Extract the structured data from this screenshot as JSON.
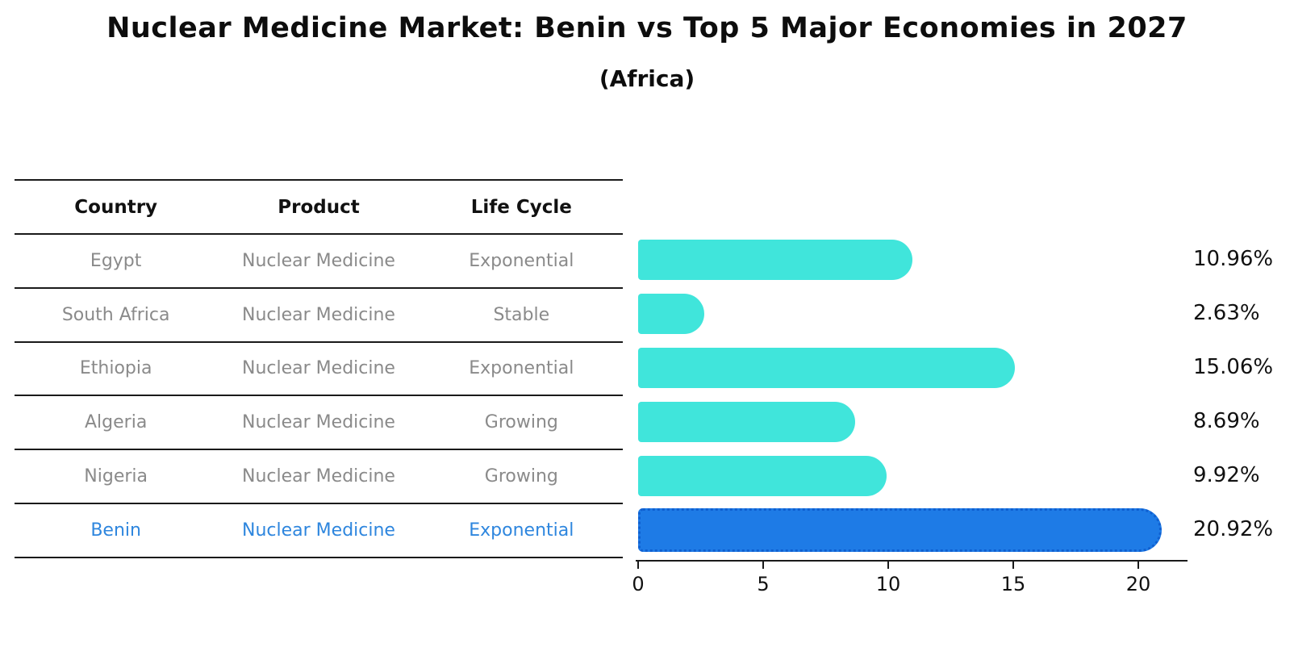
{
  "title": "Nuclear Medicine Market: Benin vs Top 5 Major Economies in 2027",
  "subtitle": "(Africa)",
  "table": {
    "headers": [
      "Country",
      "Product",
      "Life Cycle"
    ],
    "rows": [
      {
        "country": "Egypt",
        "product": "Nuclear Medicine",
        "life_cycle": "Exponential",
        "highlight": false
      },
      {
        "country": "South Africa",
        "product": "Nuclear Medicine",
        "life_cycle": "Stable",
        "highlight": false
      },
      {
        "country": "Ethiopia",
        "product": "Nuclear Medicine",
        "life_cycle": "Exponential",
        "highlight": false
      },
      {
        "country": "Algeria",
        "product": "Nuclear Medicine",
        "life_cycle": "Growing",
        "highlight": false
      },
      {
        "country": "Nigeria",
        "product": "Nuclear Medicine",
        "life_cycle": "Growing",
        "highlight": false
      },
      {
        "country": "Benin",
        "product": "Nuclear Medicine",
        "life_cycle": "Exponential",
        "highlight": true
      }
    ]
  },
  "chart_data": {
    "type": "bar",
    "orientation": "horizontal",
    "title": "Nuclear Medicine Market: Benin vs Top 5 Major Economies in 2027",
    "subtitle": "(Africa)",
    "categories": [
      "Egypt",
      "South Africa",
      "Ethiopia",
      "Algeria",
      "Nigeria",
      "Benin"
    ],
    "values": [
      10.96,
      2.63,
      15.06,
      8.69,
      9.92,
      20.92
    ],
    "value_labels": [
      "10.96%",
      "2.63%",
      "15.06%",
      "8.69%",
      "9.92%",
      "20.92%"
    ],
    "xticks": [
      0,
      5,
      10,
      15,
      20
    ],
    "xlim": [
      0,
      22
    ],
    "grid": false,
    "legend": false,
    "bar_color": "#40E5DB",
    "highlight_index": 5,
    "highlight_color": "#1E7BE6",
    "highlight_border_color": "#0F5FD0"
  },
  "colors": {
    "text_primary": "#111111",
    "table_text": "#8a8a8a",
    "accent_blue": "#2E86DE",
    "axis": "#1a1a1a"
  }
}
